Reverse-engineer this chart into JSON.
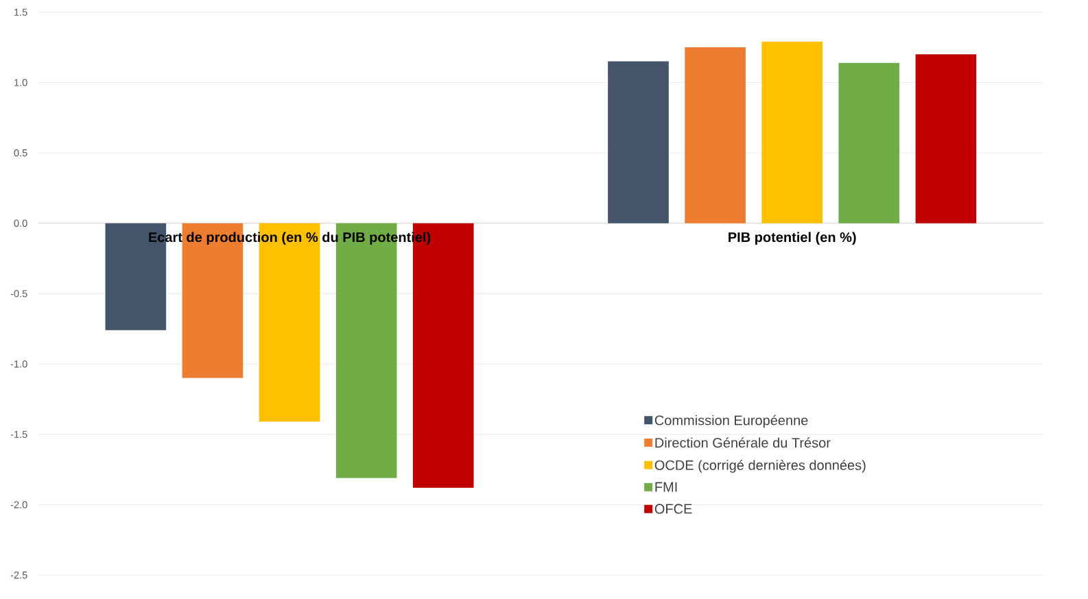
{
  "chart_data": {
    "type": "bar",
    "categories": [
      "Ecart de production (en % du PIB potentiel)",
      "PIB potentiel (en %)"
    ],
    "series": [
      {
        "name": "Commission Européenne",
        "color": "#44546a",
        "values": [
          -0.76,
          1.15
        ]
      },
      {
        "name": "Direction Générale du Trésor",
        "color": "#ed7d31",
        "values": [
          -1.1,
          1.25
        ]
      },
      {
        "name": "OCDE (corrigé dernières données)",
        "color": "#ffc000",
        "values": [
          -1.41,
          1.29
        ]
      },
      {
        "name": "FMI",
        "color": "#70ad47",
        "values": [
          -1.81,
          1.14
        ]
      },
      {
        "name": "OFCE",
        "color": "#c00000",
        "values": [
          -1.88,
          1.2
        ]
      }
    ],
    "ylim": [
      -2.5,
      1.5
    ],
    "yticks": [
      {
        "value": -2.5,
        "label": "-2.5"
      },
      {
        "value": -2.0,
        "label": "-2.0"
      },
      {
        "value": -1.5,
        "label": "-1.5"
      },
      {
        "value": -1.0,
        "label": "-1.0"
      },
      {
        "value": -0.5,
        "label": "-0.5"
      },
      {
        "value": 0.0,
        "label": "0.0"
      },
      {
        "value": 0.5,
        "label": "0.5"
      },
      {
        "value": 1.0,
        "label": "1.0"
      },
      {
        "value": 1.5,
        "label": "1.5"
      }
    ],
    "grid": "y",
    "legend": "bottom right"
  }
}
